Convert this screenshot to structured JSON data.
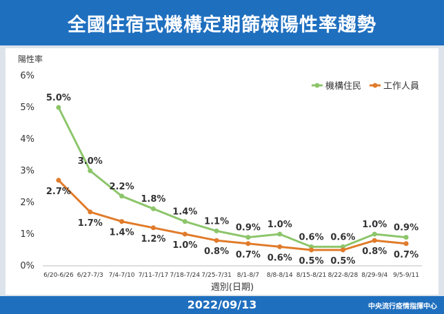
{
  "banner": {
    "title": "全國住宿式機構定期篩檢陽性率趨勢"
  },
  "footer": {
    "date": "2022/09/13",
    "source": "中央流行疫情指揮中心"
  },
  "colors": {
    "banner": "#1f6fbf",
    "residents": "#8cc56a",
    "staff": "#e07b2a"
  },
  "chart_data": {
    "type": "line",
    "title": "",
    "xlabel": "週別(日期)",
    "ylabel": "陽性率",
    "ylim": [
      0,
      6
    ],
    "yticks": [
      "0%",
      "1%",
      "2%",
      "3%",
      "4%",
      "5%",
      "6%"
    ],
    "grid": false,
    "legend_position": "top-right",
    "categories": [
      "6/20-6/26",
      "6/27-7/3",
      "7/4-7/10",
      "7/11-7/17",
      "7/18-7/24",
      "7/25-7/31",
      "8/1-8/7",
      "8/8-8/14",
      "8/15-8/21",
      "8/22-8/28",
      "8/29-9/4",
      "9/5-9/11"
    ],
    "series": [
      {
        "name": "機構住民",
        "values": [
          5.0,
          3.0,
          2.2,
          1.8,
          1.4,
          1.1,
          0.9,
          1.0,
          0.6,
          0.6,
          1.0,
          0.9
        ],
        "labels": [
          "5.0%",
          "3.0%",
          "2.2%",
          "1.8%",
          "1.4%",
          "1.1%",
          "0.9%",
          "1.0%",
          "0.6%",
          "0.6%",
          "1.0%",
          "0.9%"
        ]
      },
      {
        "name": "工作人員",
        "values": [
          2.7,
          1.7,
          1.4,
          1.2,
          1.0,
          0.8,
          0.7,
          0.6,
          0.5,
          0.5,
          0.8,
          0.7
        ],
        "labels": [
          "2.7%",
          "1.7%",
          "1.4%",
          "1.2%",
          "1.0%",
          "0.8%",
          "0.7%",
          "0.6%",
          "0.5%",
          "0.5%",
          "0.8%",
          "0.7%"
        ]
      }
    ]
  }
}
